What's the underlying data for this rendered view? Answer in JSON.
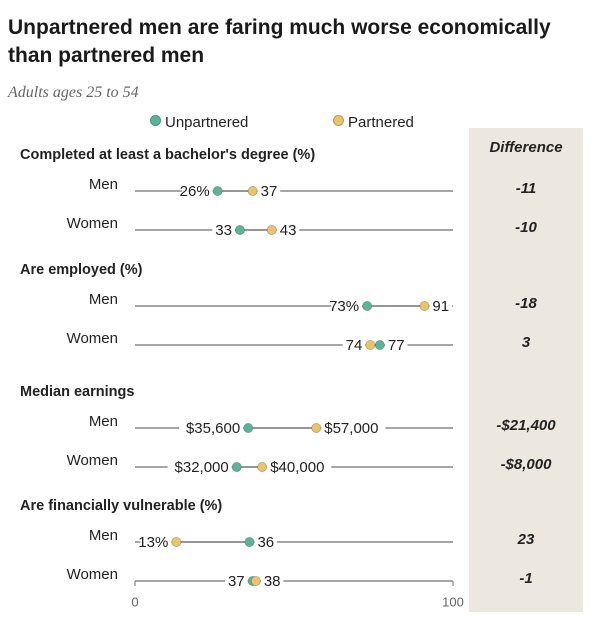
{
  "title": "Unpartnered men are faring much worse economically than partnered men",
  "subtitle": "Adults ages 25 to 54",
  "legend": {
    "unpartnered_label": "Unpartnered",
    "partnered_label": "Partnered"
  },
  "colors": {
    "unpartnered": "#5bb49a",
    "partnered": "#e9c46a",
    "line": "#888888",
    "panel": "#ece8e0"
  },
  "difference_header": "Difference",
  "chart_data": {
    "type": "dot",
    "xlim": [
      0,
      100
    ],
    "x_tick_labels": [
      "0",
      "100"
    ],
    "series_names": [
      "Unpartnered",
      "Partnered"
    ],
    "sections": [
      {
        "title": "Completed at least a bachelor's degree (%)",
        "rows": [
          {
            "label": "Men",
            "unpartnered": 26,
            "partnered": 37,
            "unpartnered_label": "26%",
            "partnered_label": "37",
            "difference": "-11"
          },
          {
            "label": "Women",
            "unpartnered": 33,
            "partnered": 43,
            "unpartnered_label": "33",
            "partnered_label": "43",
            "difference": "-10"
          }
        ]
      },
      {
        "title": "Are employed (%)",
        "rows": [
          {
            "label": "Men",
            "unpartnered": 73,
            "partnered": 91,
            "unpartnered_label": "73%",
            "partnered_label": "91",
            "difference": "-18"
          },
          {
            "label": "Women",
            "unpartnered": 77,
            "partnered": 74,
            "unpartnered_label": "77",
            "partnered_label": "74",
            "difference": "3"
          }
        ]
      },
      {
        "title": "Median earnings",
        "rows": [
          {
            "label": "Men",
            "unpartnered": 35600,
            "partnered": 57000,
            "unpartnered_label": "$35,600",
            "partnered_label": "$57,000",
            "difference": "-$21,400"
          },
          {
            "label": "Women",
            "unpartnered": 32000,
            "partnered": 40000,
            "unpartnered_label": "$32,000",
            "partnered_label": "$40,000",
            "difference": "-$8,000"
          }
        ]
      },
      {
        "title": "Are financially vulnerable (%)",
        "rows": [
          {
            "label": "Men",
            "unpartnered": 36,
            "partnered": 13,
            "unpartnered_label": "36",
            "partnered_label": "13%",
            "difference": "23"
          },
          {
            "label": "Women",
            "unpartnered": 37,
            "partnered": 38,
            "unpartnered_label": "37",
            "partnered_label": "38",
            "difference": "-1"
          }
        ]
      }
    ]
  }
}
